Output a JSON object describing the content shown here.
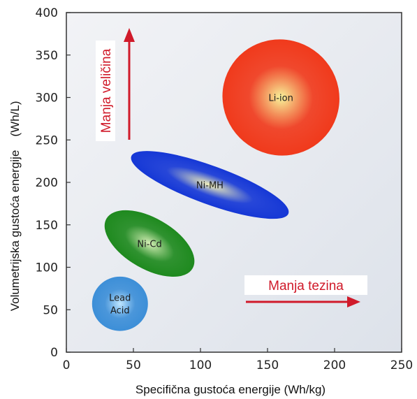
{
  "chart_data": {
    "type": "scatter",
    "title": "",
    "xlabel": "Specifična gustoća energije (Wh/kg)",
    "ylabel": "Volumetrijska gustoća energije",
    "ylabel_unit": "(Wh/L)",
    "xlim": [
      0,
      250
    ],
    "ylim": [
      0,
      400
    ],
    "xticks": [
      0,
      50,
      100,
      150,
      200,
      250
    ],
    "yticks": [
      0,
      50,
      100,
      150,
      200,
      250,
      300,
      350,
      400
    ],
    "grid": false,
    "regions": [
      {
        "name": "Lead Acid",
        "lines": [
          "Lead",
          "Acid"
        ],
        "x_center": 40,
        "y_center": 57,
        "x_range": [
          20,
          60
        ],
        "y_range": [
          25,
          90
        ],
        "tilt_deg": 0,
        "color_inner": "#bfe6ff",
        "color_outer": "#3d8fd8"
      },
      {
        "name": "Ni-Cd",
        "lines": [
          "Ni-Cd"
        ],
        "x_center": 62,
        "y_center": 128,
        "x_range": [
          38,
          87
        ],
        "y_range": [
          75,
          180
        ],
        "tilt_deg": 30,
        "color_inner": "#d8f0b8",
        "color_outer": "#1f8a1f"
      },
      {
        "name": "Ni-MH",
        "lines": [
          "Ni-MH"
        ],
        "x_center": 107,
        "y_center": 197,
        "x_range": [
          82,
          132
        ],
        "y_range": [
          105,
          290
        ],
        "tilt_deg": 20,
        "color_inner": "#f4f2b8",
        "color_outer": "#1638d6"
      },
      {
        "name": "Li-ion",
        "lines": [
          "Li-ion"
        ],
        "x_center": 160,
        "y_center": 300,
        "x_range": [
          122,
          208
        ],
        "y_range": [
          235,
          372
        ],
        "tilt_deg": 35,
        "color_inner": "#f8f49a",
        "color_outer": "#f03a1c"
      }
    ],
    "annotations": [
      {
        "text": "Manja veličina",
        "direction": "up",
        "color": "#d01a2a"
      },
      {
        "text": "Manja tezina",
        "direction": "right",
        "color": "#d01a2a"
      }
    ]
  }
}
